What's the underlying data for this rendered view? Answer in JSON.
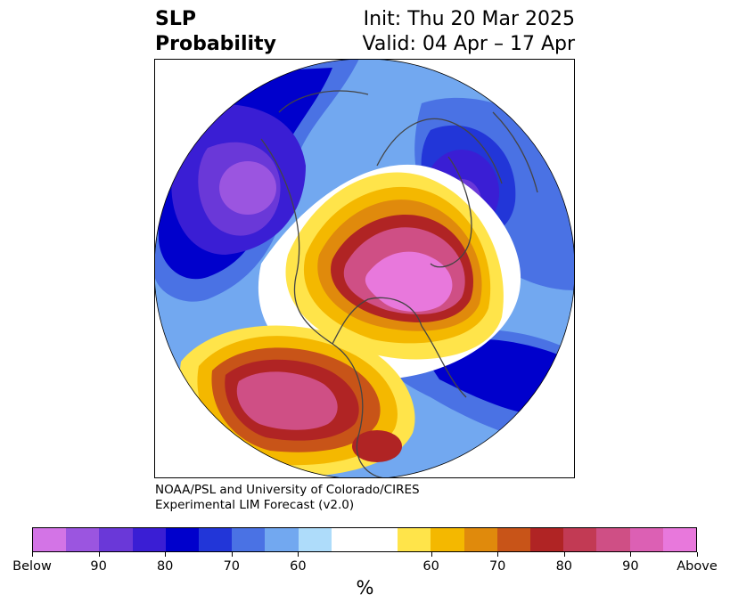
{
  "title": {
    "left_line1": "SLP",
    "left_line2": "Probability",
    "right_line1": "Init: Thu 20 Mar 2025",
    "right_line2": "Valid: 04 Apr – 17 Apr"
  },
  "credit": {
    "line1": "NOAA/PSL and University of Colorado/CIRES",
    "line2": "Experimental LIM Forecast (v2.0)"
  },
  "colorbar": {
    "colors": [
      "#d374e6",
      "#9b55e0",
      "#6a38d8",
      "#3a1ed4",
      "#0000cc",
      "#2236d8",
      "#4a72e4",
      "#72a8f0",
      "#aedcfa",
      "#ffffff",
      "#ffffff",
      "#ffe44a",
      "#f4b800",
      "#e08a0c",
      "#c85418",
      "#b02424",
      "#c23a54",
      "#cf4f85",
      "#dc60b4",
      "#e878dc"
    ],
    "tick_labels": [
      "Below",
      "90",
      "80",
      "70",
      "60",
      "60",
      "70",
      "80",
      "90",
      "Above"
    ],
    "unit": "%"
  },
  "map": {
    "projection": "polar-stereographic",
    "region": "Northern Hemisphere",
    "variable": "SLP"
  }
}
